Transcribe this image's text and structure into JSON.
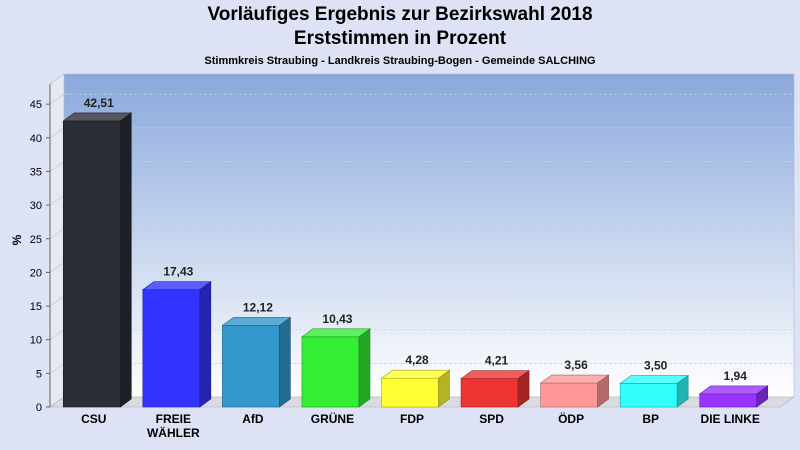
{
  "chart_data": {
    "type": "bar",
    "title": "Vorläufiges Ergebnis zur Bezirkswahl 2018",
    "subtitle": "Erststimmen in Prozent",
    "caption": "Stimmkreis Straubing - Landkreis Straubing-Bogen - Gemeinde SALCHING",
    "ylabel": "%",
    "xlabel": "",
    "ylim": [
      0,
      48
    ],
    "yticks": [
      0,
      5,
      10,
      15,
      20,
      25,
      30,
      35,
      40,
      45
    ],
    "grid": true,
    "categories": [
      [
        "CSU"
      ],
      [
        "FREIE",
        "WÄHLER"
      ],
      [
        "AfD"
      ],
      [
        "GRÜNE"
      ],
      [
        "FDP"
      ],
      [
        "SPD"
      ],
      [
        "ÖDP"
      ],
      [
        "BP"
      ],
      [
        "DIE LINKE"
      ]
    ],
    "values": [
      42.51,
      17.43,
      12.12,
      10.43,
      4.28,
      4.21,
      3.56,
      3.5,
      1.94
    ],
    "value_labels": [
      "42,51",
      "17,43",
      "12,12",
      "10,43",
      "4,28",
      "4,21",
      "3,56",
      "3,50",
      "1,94"
    ],
    "colors": [
      "#2a2e36",
      "#3333ff",
      "#3399cc",
      "#33ee33",
      "#ffff33",
      "#ee3333",
      "#ff9999",
      "#33ffff",
      "#9933ff"
    ]
  }
}
